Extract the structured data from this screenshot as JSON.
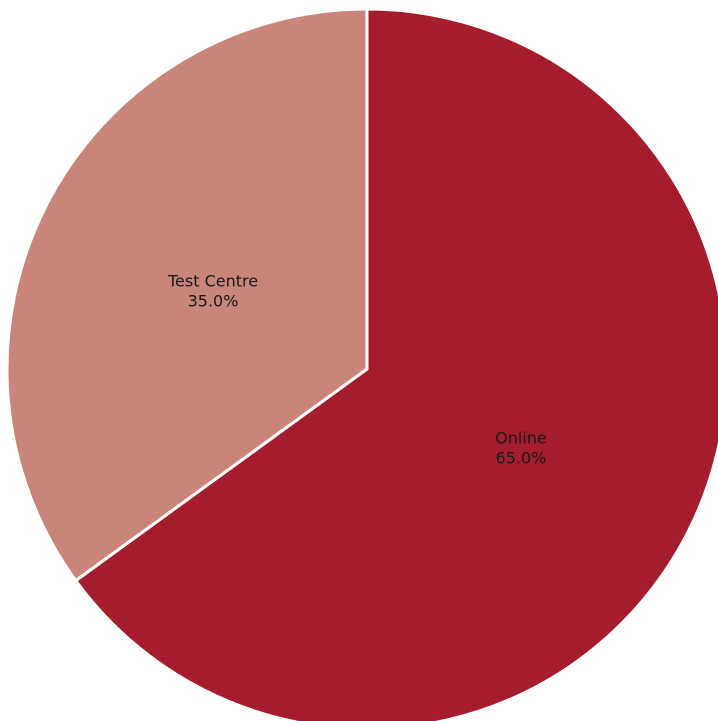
{
  "chart_data": {
    "type": "pie",
    "title": "",
    "slices": [
      {
        "label": "Online",
        "value": 65.0,
        "percent_label": "65.0%",
        "color": "#a51c2f"
      },
      {
        "label": "Test Centre",
        "value": 35.0,
        "percent_label": "35.0%",
        "color": "#c9857a"
      }
    ],
    "start_angle_deg": 0,
    "direction": "clockwise"
  }
}
